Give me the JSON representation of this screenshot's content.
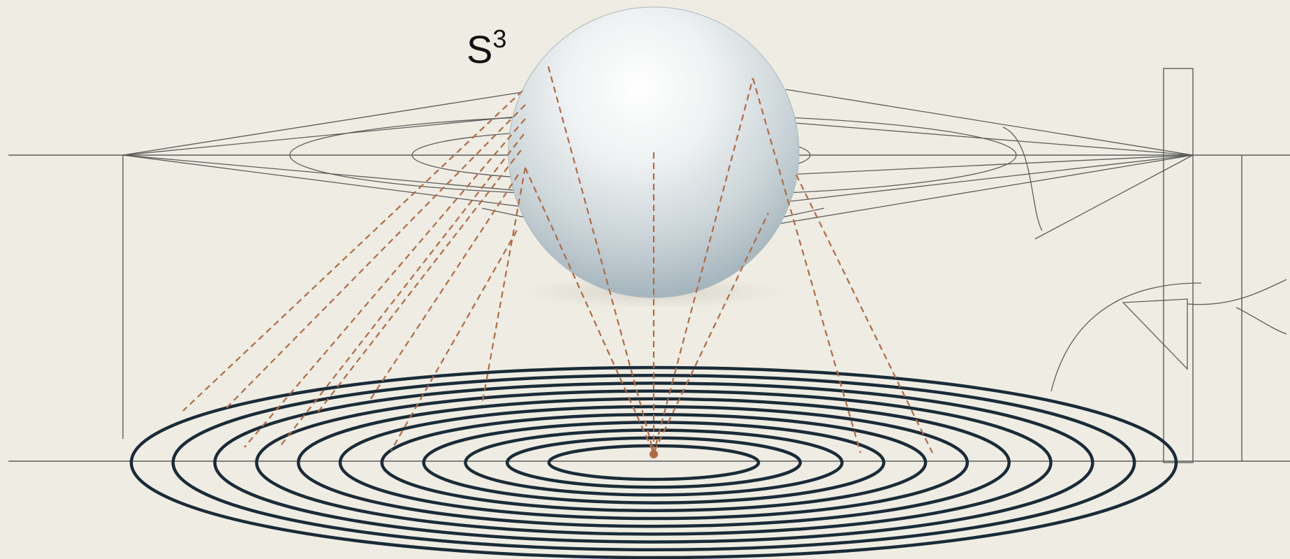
{
  "sphere": {
    "label_base": "S",
    "label_exponent": "3"
  },
  "colors": {
    "background": "#efede3",
    "construction_line": "#5c5c5c",
    "projection_ray": "#b06a44",
    "ellipse_ring": "#1a2b38",
    "sphere_highlight": "#ffffff",
    "sphere_shadow": "#9fb0b8"
  }
}
